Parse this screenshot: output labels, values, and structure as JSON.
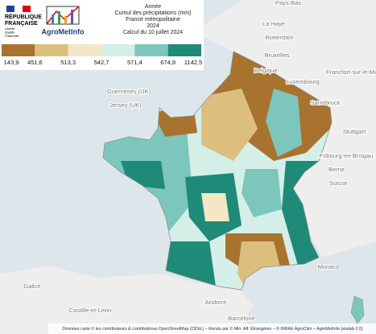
{
  "header": {
    "republic_lines": [
      "RÉPUBLIQUE",
      "FRANÇAISE"
    ],
    "motto_lines": [
      "Liberté",
      "Égalité",
      "Fraternité"
    ],
    "brand": "AgroMetInfo"
  },
  "title_lines": [
    "Année",
    "Cumul des précipitations (mm)",
    "France métropolitaine",
    "2024",
    "Calcul du 10 juillet 2024"
  ],
  "legend": {
    "colors": [
      "#a8732f",
      "#dcbf7e",
      "#f4e7c6",
      "#d4efe8",
      "#7cc6bc",
      "#1f8a78"
    ],
    "breaks": [
      "143,9",
      "451,6",
      "513,3",
      "542,7",
      "571,4",
      "674,8",
      "1142,5"
    ]
  },
  "places": [
    "Pays-Bas",
    "La Haye",
    "Rotterdam",
    "Bruxelles",
    "Belgique",
    "Luxembourg",
    "Guernesey (UK)",
    "Jersey (UK)",
    "Sarrebruck",
    "Francfort-sur-le-Main",
    "Stuttgart",
    "Fribourg-en-Brisgau",
    "Berne",
    "Suisse",
    "Monaco",
    "Andorre",
    "Barcelone",
    "Galice",
    "Castille-et-León"
  ],
  "attribution": "Données carte © les contributeurs & contributrices OpenStreetMap (ODbL) – Rendu par © Min. Aff. Étrangères – © INRAE AgroClim – AgroMetInfo (etalab-2.0)"
}
